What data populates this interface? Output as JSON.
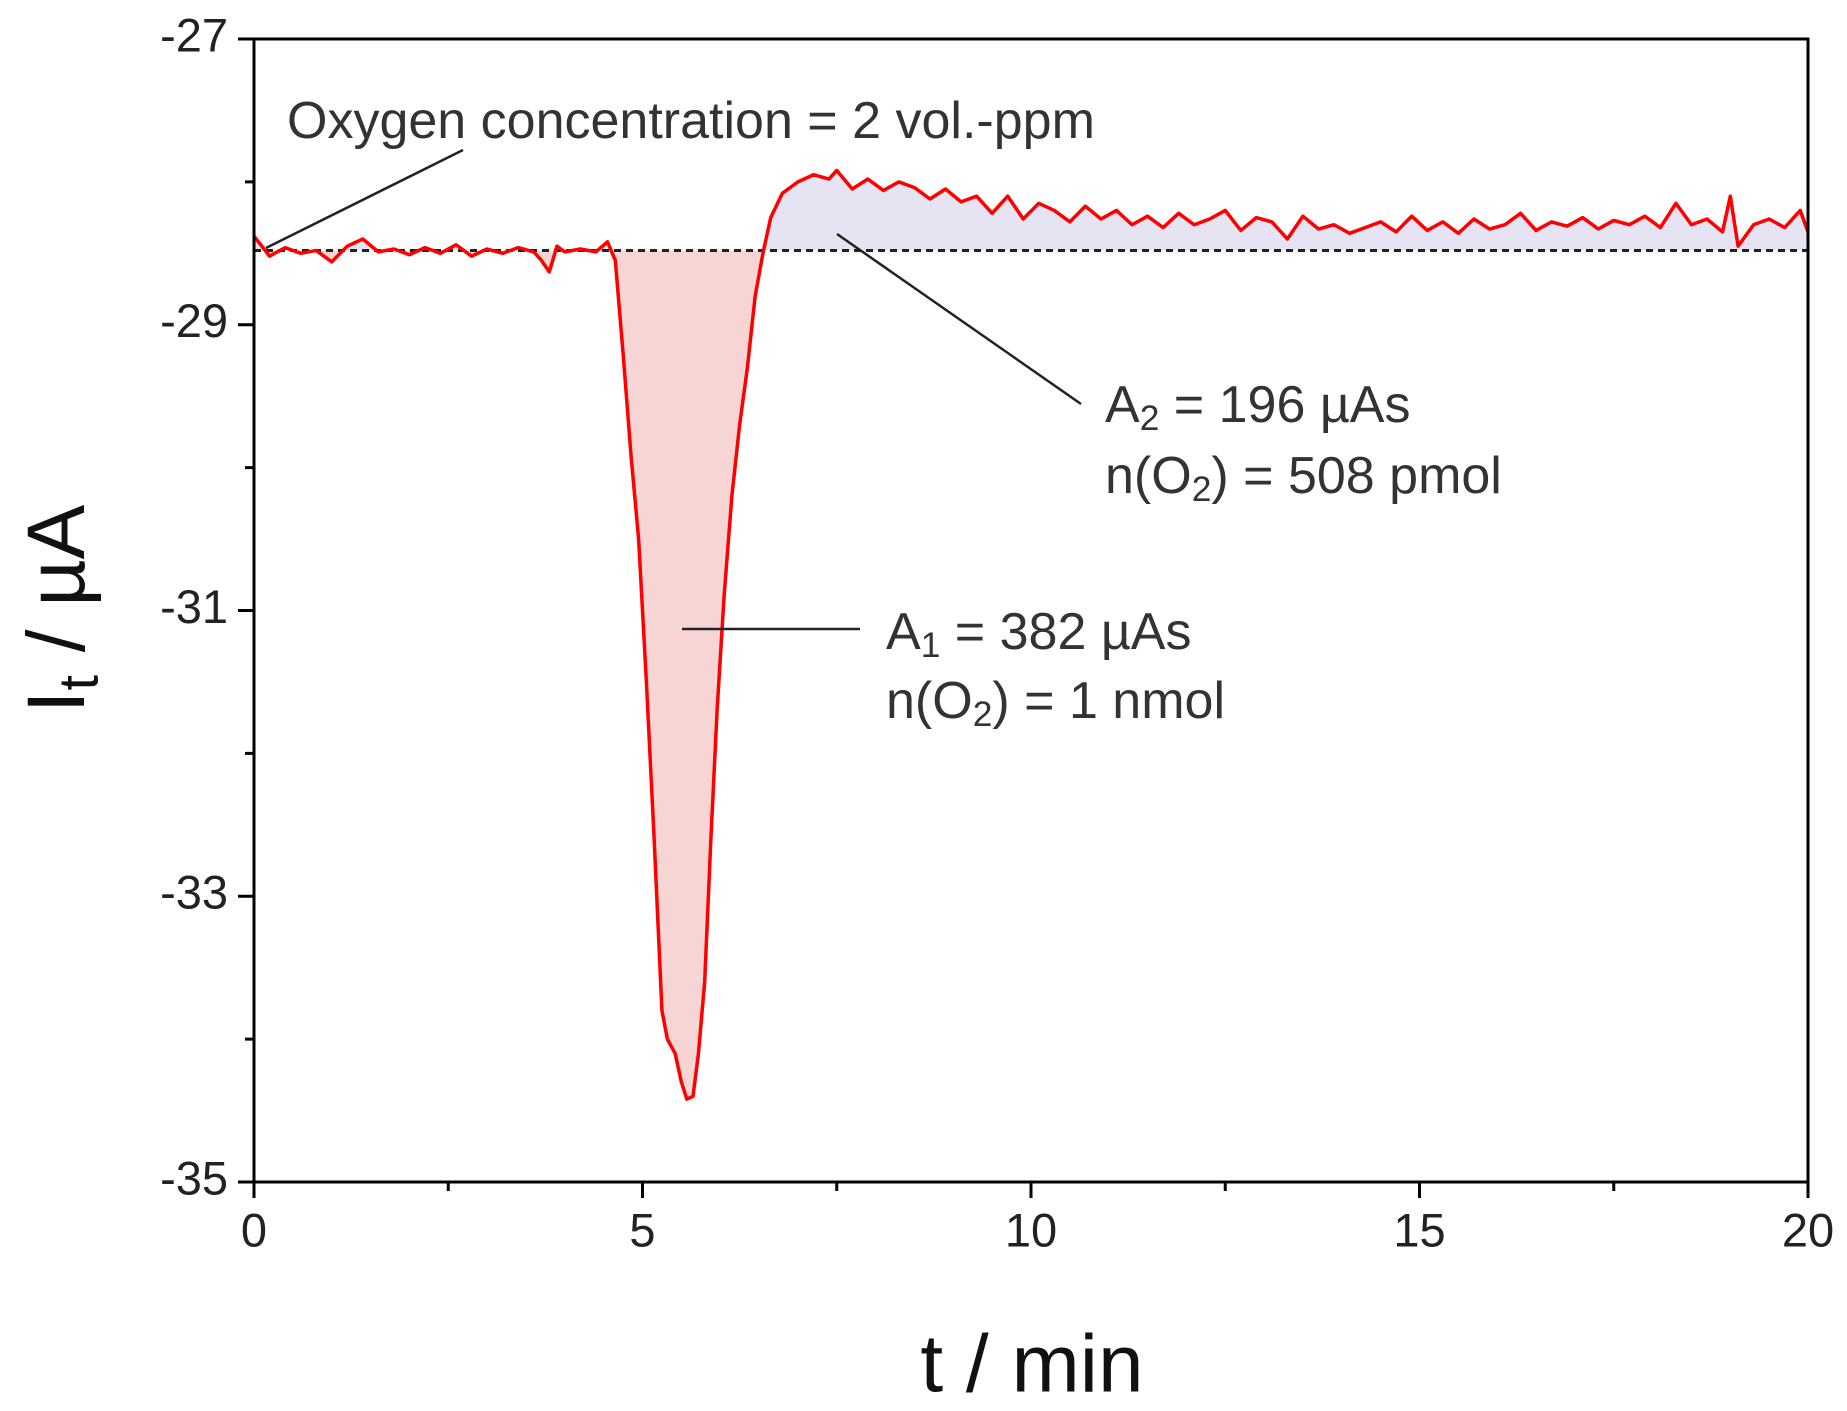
{
  "chart_data": {
    "type": "line",
    "x_label": "t / min",
    "y_label": [
      "I",
      "t",
      " / µA"
    ],
    "xlim": [
      0,
      20
    ],
    "ylim": [
      -35,
      -27
    ],
    "xticks": [
      0,
      5,
      10,
      15,
      20
    ],
    "yticks": [
      -35,
      -33,
      -31,
      -29,
      -27
    ],
    "xminor_ticks": [
      2.5,
      7.5,
      12.5,
      17.5
    ],
    "yminor_ticks": [
      -34,
      -32,
      -30,
      -28
    ],
    "baseline": -28.48,
    "below_color": "#f8d5d5",
    "above_color": "#e6e4f2",
    "annotations": [
      {
        "lines": [
          [
            "Oxygen concentration = 2 vol.-ppm"
          ]
        ]
      },
      {
        "lines": [
          [
            "A",
            "2",
            " = 196 µAs"
          ],
          [
            "n(O",
            "2",
            ") = 508 pmol"
          ]
        ]
      },
      {
        "lines": [
          [
            "A",
            "1",
            " = 382 µAs"
          ],
          [
            "n(O",
            "2",
            ") = 1 nmol"
          ]
        ]
      }
    ],
    "series": [
      {
        "color": "#ff0000",
        "x": [
          0,
          0.2,
          0.4,
          0.6,
          0.8,
          1.0,
          1.2,
          1.4,
          1.6,
          1.8,
          2.0,
          2.2,
          2.4,
          2.6,
          2.8,
          3.0,
          3.2,
          3.4,
          3.6,
          3.7,
          3.8,
          3.9,
          4.0,
          4.2,
          4.4,
          4.55,
          4.65,
          4.75,
          4.85,
          4.95,
          5.05,
          5.15,
          5.25,
          5.32,
          5.42,
          5.5,
          5.57,
          5.65,
          5.72,
          5.8,
          5.88,
          5.96,
          6.05,
          6.15,
          6.25,
          6.35,
          6.45,
          6.55,
          6.65,
          6.8,
          7.0,
          7.2,
          7.4,
          7.5,
          7.7,
          7.9,
          8.1,
          8.3,
          8.5,
          8.7,
          8.9,
          9.1,
          9.3,
          9.5,
          9.7,
          9.9,
          10.1,
          10.3,
          10.5,
          10.7,
          10.9,
          11.1,
          11.3,
          11.5,
          11.7,
          11.9,
          12.1,
          12.3,
          12.5,
          12.7,
          12.9,
          13.1,
          13.3,
          13.5,
          13.7,
          13.9,
          14.1,
          14.3,
          14.5,
          14.7,
          14.9,
          15.1,
          15.3,
          15.5,
          15.7,
          15.9,
          16.1,
          16.3,
          16.5,
          16.7,
          16.9,
          17.1,
          17.3,
          17.5,
          17.7,
          17.9,
          18.1,
          18.3,
          18.5,
          18.7,
          18.9,
          19.0,
          19.1,
          19.3,
          19.5,
          19.7,
          19.9,
          20.0
        ],
        "values": [
          -28.38,
          -28.52,
          -28.46,
          -28.5,
          -28.48,
          -28.56,
          -28.45,
          -28.4,
          -28.49,
          -28.47,
          -28.51,
          -28.46,
          -28.5,
          -28.44,
          -28.52,
          -28.47,
          -28.5,
          -28.46,
          -28.49,
          -28.55,
          -28.63,
          -28.45,
          -28.49,
          -28.47,
          -28.49,
          -28.42,
          -28.55,
          -29.2,
          -29.9,
          -30.5,
          -31.5,
          -32.6,
          -33.8,
          -34.0,
          -34.1,
          -34.3,
          -34.42,
          -34.4,
          -34.1,
          -33.6,
          -32.6,
          -31.7,
          -30.9,
          -30.2,
          -29.7,
          -29.3,
          -28.8,
          -28.5,
          -28.25,
          -28.08,
          -28.0,
          -27.95,
          -27.98,
          -27.92,
          -28.05,
          -27.98,
          -28.06,
          -28.0,
          -28.04,
          -28.12,
          -28.05,
          -28.14,
          -28.1,
          -28.22,
          -28.1,
          -28.26,
          -28.15,
          -28.2,
          -28.28,
          -28.17,
          -28.26,
          -28.2,
          -28.3,
          -28.24,
          -28.32,
          -28.22,
          -28.3,
          -28.26,
          -28.2,
          -28.34,
          -28.25,
          -28.28,
          -28.4,
          -28.24,
          -28.33,
          -28.3,
          -28.36,
          -28.32,
          -28.28,
          -28.35,
          -28.24,
          -28.34,
          -28.28,
          -28.36,
          -28.26,
          -28.33,
          -28.3,
          -28.22,
          -28.34,
          -28.28,
          -28.31,
          -28.25,
          -28.33,
          -28.27,
          -28.3,
          -28.24,
          -28.32,
          -28.15,
          -28.3,
          -28.26,
          -28.35,
          -28.1,
          -28.45,
          -28.3,
          -28.26,
          -28.32,
          -28.2,
          -28.35
        ]
      }
    ]
  }
}
